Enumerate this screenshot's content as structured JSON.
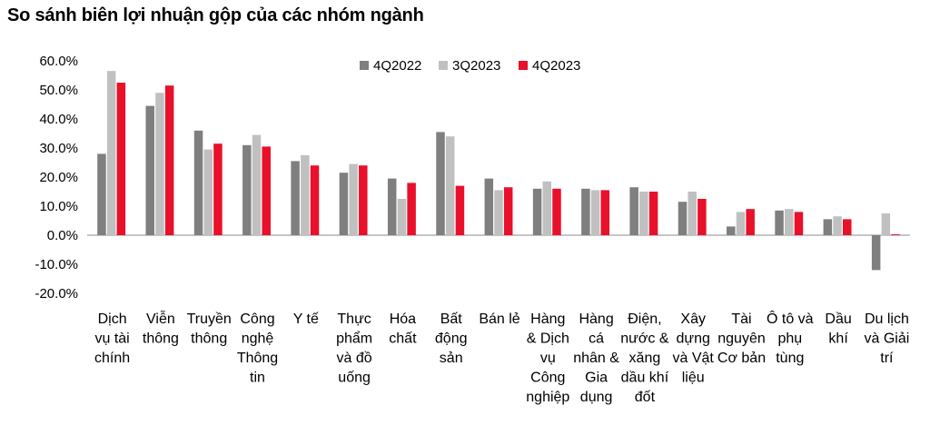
{
  "title": "So sánh biên lợi nhuận gộp của các nhóm ngành",
  "chart_data": {
    "type": "bar",
    "ylim": [
      -20,
      60
    ],
    "ytick_values": [
      60,
      50,
      40,
      30,
      20,
      10,
      0,
      -10,
      -20
    ],
    "ytick_labels": [
      "60.0%",
      "50.0%",
      "40.0%",
      "30.0%",
      "20.0%",
      "10.0%",
      "0.0%",
      "-10.0%",
      "-20.0%"
    ],
    "categories": [
      [
        "Dịch",
        "vụ tài",
        "chính"
      ],
      [
        "Viễn",
        "thông"
      ],
      [
        "Truyền",
        "thông"
      ],
      [
        "Công",
        "nghệ",
        "Thông",
        "tin"
      ],
      [
        "Y tế"
      ],
      [
        "Thực",
        "phẩm",
        "và đồ",
        "uống"
      ],
      [
        "Hóa",
        "chất"
      ],
      [
        "Bất",
        "động",
        "sản"
      ],
      [
        "Bán lẻ"
      ],
      [
        "Hàng",
        "& Dịch",
        "vụ",
        "Công",
        "nghiệp"
      ],
      [
        "Hàng",
        "cá",
        "nhân &",
        "Gia",
        "dụng"
      ],
      [
        "Điện,",
        "nước &",
        "xăng",
        "dầu khí",
        "đốt"
      ],
      [
        "Xây",
        "dựng",
        "và Vật",
        "liệu"
      ],
      [
        "Tài",
        "nguyên",
        "Cơ bản"
      ],
      [
        "Ô tô và",
        "phụ",
        "tùng"
      ],
      [
        "Dầu",
        "khí"
      ],
      [
        "Du lịch",
        "và Giải",
        "trí"
      ]
    ],
    "series": [
      {
        "name": "4Q2022",
        "color": "#7f7f7f",
        "values": [
          28,
          44.5,
          36,
          31,
          25.5,
          21.5,
          19.5,
          35.5,
          19.5,
          16,
          16,
          16.5,
          11.5,
          3,
          8.5,
          5.5,
          -12
        ]
      },
      {
        "name": "3Q2023",
        "color": "#c0c0c0",
        "values": [
          56.5,
          49,
          29.5,
          34.5,
          27.5,
          24.5,
          12.5,
          34,
          15.5,
          18.5,
          15.5,
          15,
          15,
          8,
          9,
          6.5,
          7.5
        ]
      },
      {
        "name": "4Q2023",
        "color": "#e8102a",
        "values": [
          52.5,
          51.5,
          31.5,
          30.5,
          24,
          24,
          18,
          17,
          16.5,
          16,
          15.5,
          15,
          12.5,
          9,
          8,
          5.5,
          0.3
        ]
      }
    ],
    "legend_position": "top-center",
    "grid": false
  }
}
